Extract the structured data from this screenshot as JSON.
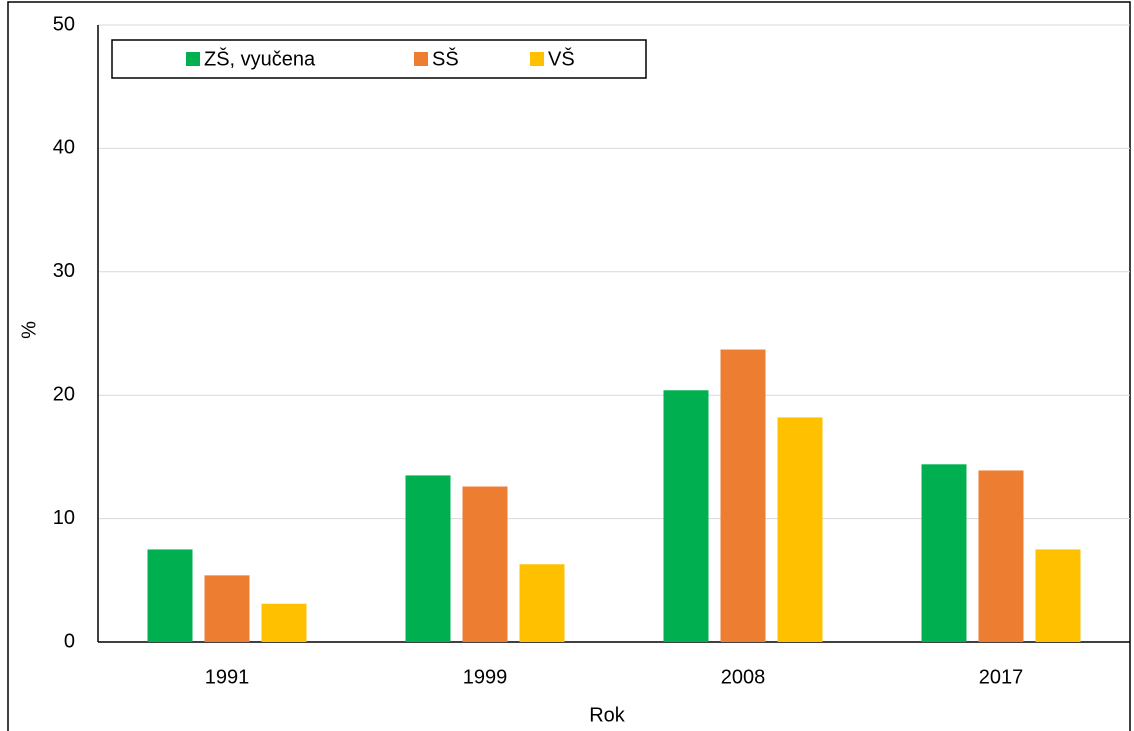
{
  "chart_data": {
    "type": "bar",
    "categories": [
      "1991",
      "1999",
      "2008",
      "2017"
    ],
    "series": [
      {
        "name": "ZŠ, vyučena",
        "color": "#00b050",
        "values": [
          7.5,
          13.5,
          20.4,
          14.4
        ]
      },
      {
        "name": "SŠ",
        "color": "#ed7d31",
        "values": [
          5.4,
          12.6,
          23.7,
          13.9
        ]
      },
      {
        "name": "VŠ",
        "color": "#ffc000",
        "values": [
          3.1,
          6.3,
          18.2,
          7.5
        ]
      }
    ],
    "ylim": [
      0,
      50
    ],
    "yticks": [
      0,
      10,
      20,
      30,
      40,
      50
    ],
    "y_label": "%",
    "x_label": "Rok",
    "grid": true
  }
}
